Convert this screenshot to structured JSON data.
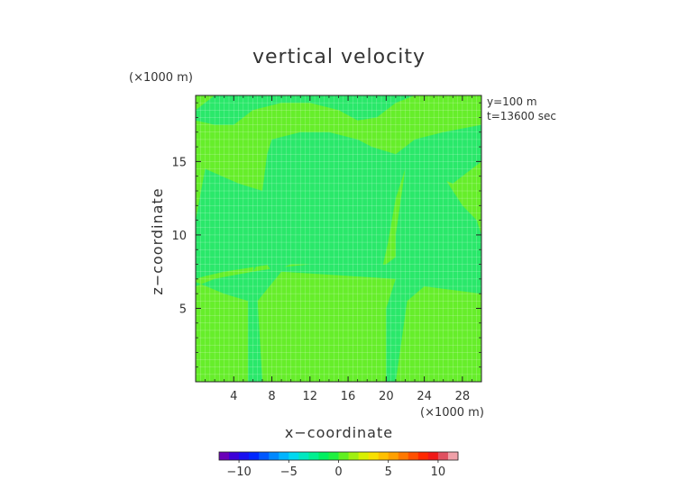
{
  "chart_data": {
    "type": "heatmap",
    "title": "vertical velocity",
    "xlabel": "x−coordinate",
    "ylabel": "z−coordinate",
    "x_unit": "(×1000 m)",
    "y_unit": "(×1000 m)",
    "annotations": [
      "y=100 m",
      "t=13600 sec"
    ],
    "xlim": [
      0,
      30
    ],
    "ylim": [
      0,
      19.5
    ],
    "x_ticks": [
      4,
      8,
      12,
      16,
      20,
      24,
      28
    ],
    "x_tick_labels": [
      "4",
      "8",
      "12",
      "16",
      "20",
      "24",
      "28"
    ],
    "y_ticks": [
      5,
      10,
      15
    ],
    "y_tick_labels": [
      "5",
      "10",
      "15"
    ],
    "grid": true,
    "background_value": 0.6,
    "regions": [
      {
        "label": "lower-center column (slightly negative)",
        "value": -0.6,
        "outline": [
          [
            5.5,
            0
          ],
          [
            7.0,
            0
          ],
          [
            6.5,
            5.5
          ],
          [
            9.0,
            7.5
          ],
          [
            21.0,
            7.0
          ],
          [
            20.0,
            5.0
          ],
          [
            20.0,
            0
          ],
          [
            21.0,
            0
          ],
          [
            22.2,
            5.5
          ],
          [
            24.0,
            6.5
          ],
          [
            30,
            6.0
          ],
          [
            30,
            10.0
          ],
          [
            29.5,
            11.0
          ],
          [
            28,
            12.0
          ],
          [
            27,
            13.0
          ],
          [
            26,
            14.0
          ],
          [
            25,
            15.0
          ],
          [
            23.5,
            15.0
          ],
          [
            22.0,
            14.5
          ],
          [
            21.0,
            10.0
          ],
          [
            21.0,
            8.5
          ],
          [
            20.0,
            8.0
          ],
          [
            18.5,
            7.8
          ],
          [
            16,
            8.0
          ],
          [
            12,
            8.0
          ],
          [
            9,
            7.8
          ],
          [
            6,
            7.5
          ],
          [
            3.5,
            7.2
          ],
          [
            2,
            7.0
          ],
          [
            0,
            6.5
          ],
          [
            0,
            6.8
          ],
          [
            3.0,
            6.0
          ],
          [
            5.5,
            5.5
          ]
        ]
      },
      {
        "label": "central V band (slightly negative)",
        "value": -0.6,
        "outline": [
          [
            0,
            11.0
          ],
          [
            1,
            14.5
          ],
          [
            4.5,
            13.5
          ],
          [
            7,
            13.0
          ],
          [
            7.5,
            15.5
          ],
          [
            8,
            16.5
          ],
          [
            11,
            17.0
          ],
          [
            14,
            17.0
          ],
          [
            17,
            16.5
          ],
          [
            18.5,
            16.0
          ],
          [
            21,
            15.5
          ],
          [
            23,
            16.5
          ],
          [
            26,
            17.0
          ],
          [
            30,
            17.5
          ],
          [
            30,
            15.0
          ],
          [
            27,
            13.5
          ],
          [
            25,
            14.0
          ],
          [
            24,
            13.5
          ],
          [
            23,
            14.0
          ],
          [
            22,
            14.5
          ],
          [
            21,
            12.5
          ],
          [
            20.2,
            9.5
          ],
          [
            19.5,
            7.5
          ],
          [
            18,
            7.5
          ],
          [
            16,
            8.0
          ],
          [
            13,
            8.0
          ],
          [
            10,
            8.0
          ],
          [
            8,
            7.5
          ],
          [
            7,
            8.5
          ],
          [
            6,
            7.5
          ],
          [
            7,
            10.0
          ],
          [
            8,
            13.5
          ],
          [
            9,
            14.0
          ],
          [
            10,
            13.0
          ],
          [
            11.5,
            11.0
          ],
          [
            12.5,
            10.8
          ],
          [
            13.5,
            12.0
          ],
          [
            14.5,
            14.0
          ],
          [
            15.5,
            14.5
          ],
          [
            17,
            14.0
          ],
          [
            19,
            12.0
          ],
          [
            19.5,
            9.5
          ],
          [
            19.6,
            8.5
          ],
          [
            18.5,
            7.5
          ],
          [
            12,
            8.0
          ],
          [
            8,
            8.0
          ],
          [
            6,
            7.8
          ],
          [
            3,
            7.5
          ],
          [
            1,
            7.2
          ],
          [
            0,
            7.0
          ]
        ]
      },
      {
        "label": "top band (slightly negative)",
        "value": -0.6,
        "outline": [
          [
            2.0,
            19.5
          ],
          [
            0,
            18.5
          ],
          [
            0,
            17.8
          ],
          [
            2,
            17.5
          ],
          [
            4,
            17.5
          ],
          [
            6,
            18.5
          ],
          [
            9,
            19.0
          ],
          [
            12,
            19.0
          ],
          [
            15,
            18.5
          ],
          [
            17,
            17.8
          ],
          [
            19,
            18.0
          ],
          [
            21,
            19.0
          ],
          [
            23,
            19.5
          ],
          [
            2.0,
            19.5
          ]
        ]
      }
    ],
    "colorbar": {
      "ticks": [
        -10,
        -5,
        0,
        5,
        10
      ],
      "tick_labels": [
        "−10",
        "−5",
        "0",
        "5",
        "10"
      ],
      "min": -12,
      "max": 12,
      "colors": [
        "#6a00b8",
        "#3d00d8",
        "#1a10f0",
        "#0028ff",
        "#0058ff",
        "#0088ff",
        "#00b4ff",
        "#00d8f0",
        "#00e8c0",
        "#00f090",
        "#00f060",
        "#20f040",
        "#60f020",
        "#a0f010",
        "#d8f000",
        "#f8e000",
        "#ffc000",
        "#ffa000",
        "#ff7800",
        "#ff5000",
        "#ff2800",
        "#f01818",
        "#e05060",
        "#f0a0a8"
      ]
    },
    "colors": {
      "positive_small": "#66ee2a",
      "negative_small": "#2ae86a",
      "frame": "#222222",
      "grid": "#ffffff"
    }
  }
}
